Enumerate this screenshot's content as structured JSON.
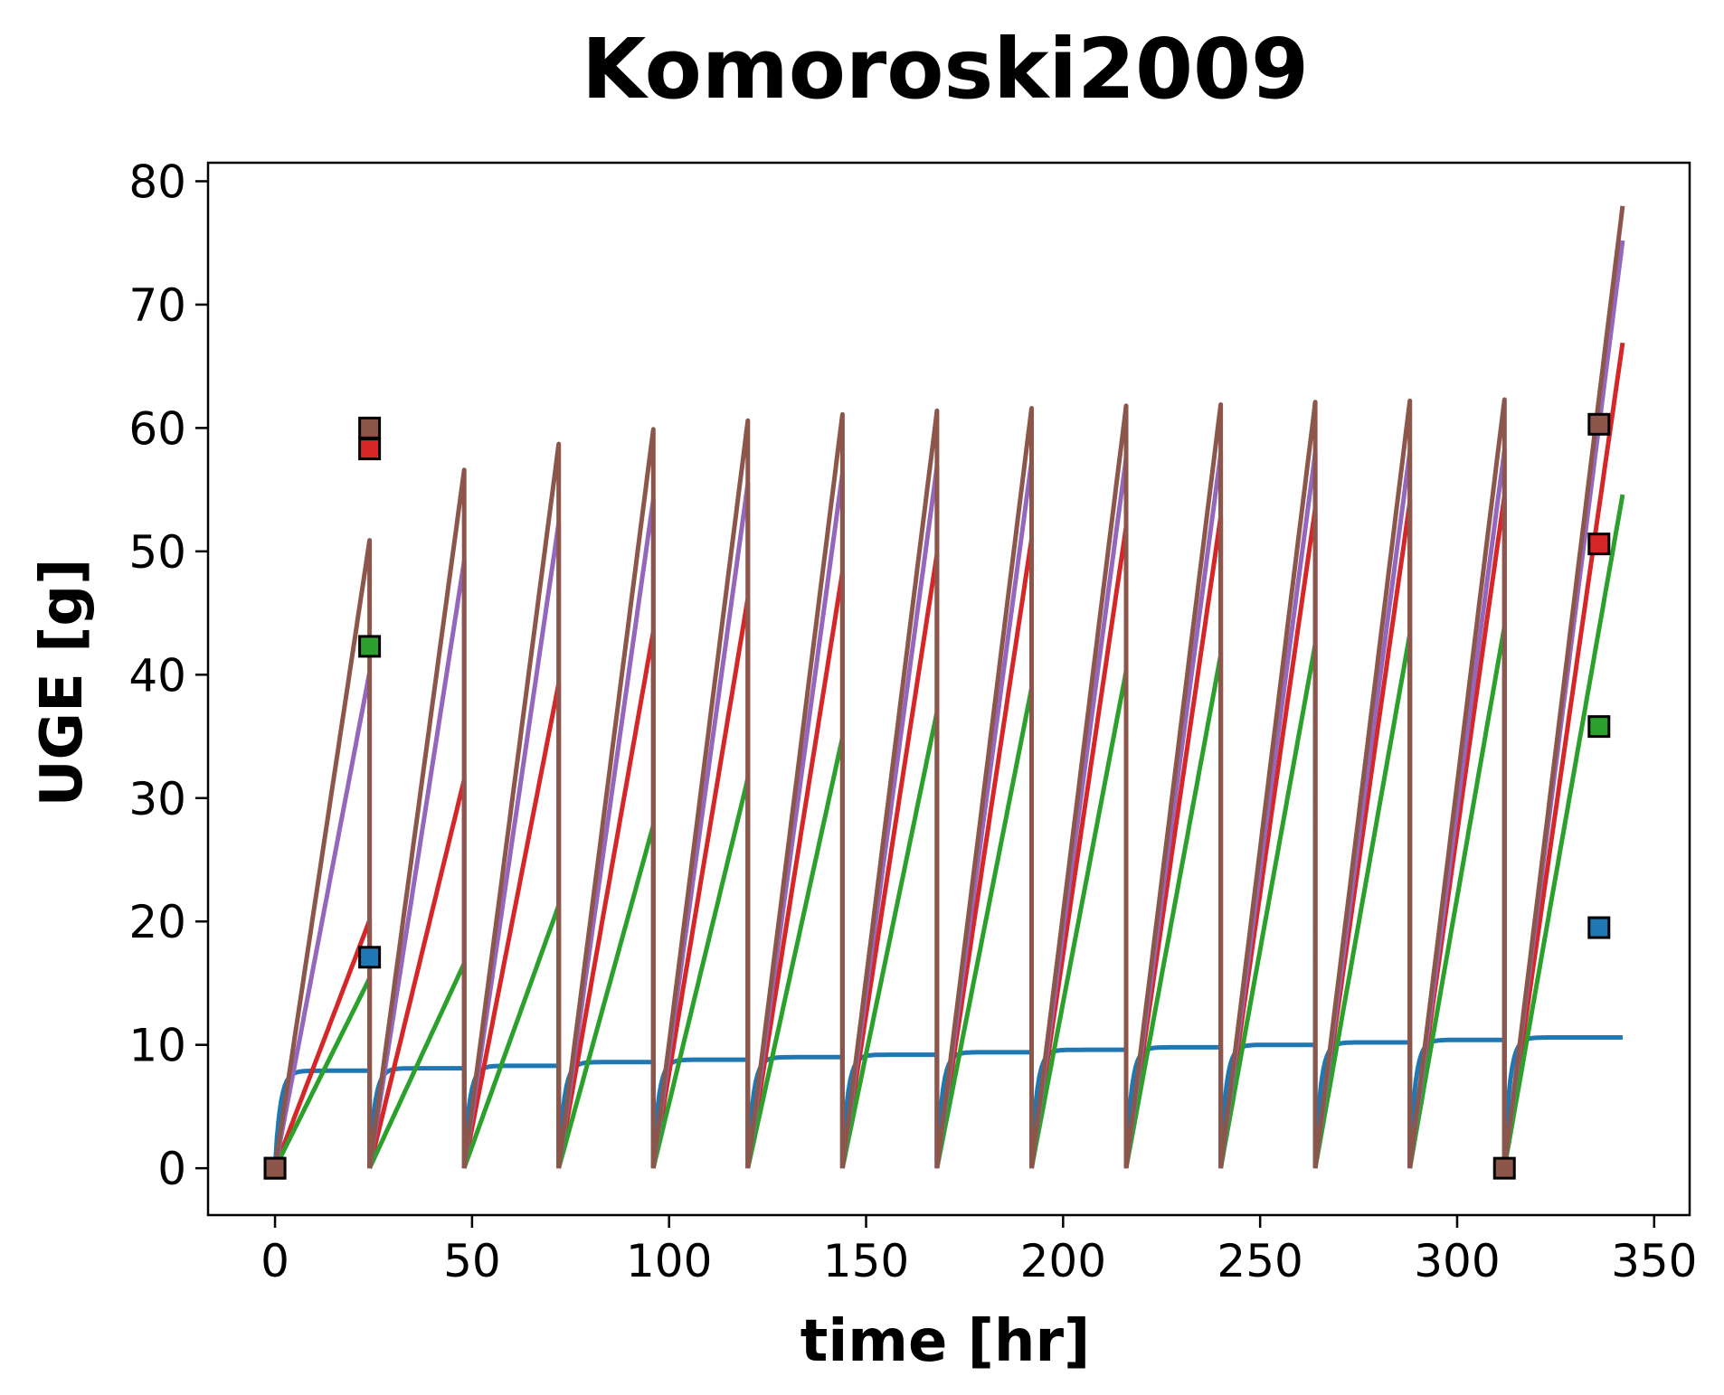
{
  "chart_data": {
    "type": "line",
    "title": "Komoroski2009",
    "xlabel": "time [hr]",
    "ylabel": "UGE [g]",
    "xlim": [
      -17,
      359
    ],
    "ylim": [
      -3.8,
      81.5
    ],
    "xticks": [
      0,
      50,
      100,
      150,
      200,
      250,
      300,
      350
    ],
    "yticks": [
      0,
      10,
      20,
      30,
      40,
      50,
      60,
      70,
      80
    ],
    "grid": false,
    "legend": "none",
    "dose_interval_hr": 24,
    "series": [
      {
        "color": "#1f77b4",
        "line_plateaus": [
          7.9,
          8.1,
          8.3,
          8.6,
          8.8,
          9.0,
          9.2,
          9.4,
          9.6,
          9.8,
          10.0,
          10.2,
          10.4,
          10.6
        ],
        "markers": [
          {
            "x": 0,
            "y": 0
          },
          {
            "x": 24,
            "y": 17.1
          },
          {
            "x": 336,
            "y": 19.5
          }
        ]
      },
      {
        "color": "#d62728",
        "line_plateaus": [
          20.1,
          31.5,
          39.3,
          43.5,
          46.2,
          48.3,
          49.8,
          51.0,
          52.0,
          52.8,
          53.5,
          54.0,
          54.5,
          66.9
        ],
        "markers": [
          {
            "x": 24,
            "y": 58.3
          },
          {
            "x": 336,
            "y": 50.6
          }
        ]
      },
      {
        "color": "#2ca02c",
        "line_plateaus": [
          15.4,
          16.6,
          21.3,
          27.8,
          31.6,
          34.9,
          37.0,
          38.9,
          40.3,
          41.6,
          42.5,
          43.3,
          43.9,
          54.6
        ],
        "markers": [
          {
            "x": 24,
            "y": 42.3
          },
          {
            "x": 336,
            "y": 35.8
          }
        ]
      },
      {
        "color": "#9467bd",
        "line_plateaus": [
          40.2,
          49.2,
          52.3,
          54.2,
          55.5,
          56.3,
          56.9,
          57.3,
          57.6,
          57.9,
          58.0,
          58.1,
          58.2,
          75.2
        ],
        "markers": []
      },
      {
        "color": "#8c564b",
        "line_plateaus": [
          50.9,
          56.6,
          58.7,
          59.9,
          60.6,
          61.1,
          61.4,
          61.6,
          61.8,
          61.9,
          62.1,
          62.2,
          62.3,
          78.0
        ],
        "markers": [
          {
            "x": 0,
            "y": 0
          },
          {
            "x": 24,
            "y": 60.0
          },
          {
            "x": 312,
            "y": 0
          },
          {
            "x": 336,
            "y": 60.3
          }
        ]
      }
    ]
  }
}
